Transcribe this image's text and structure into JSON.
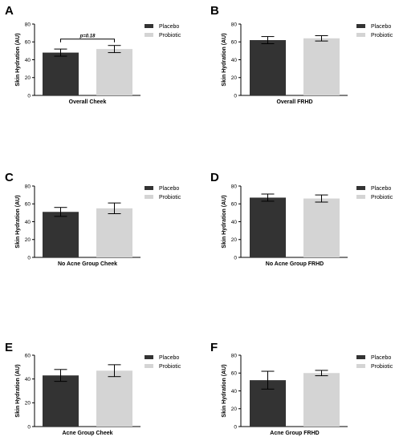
{
  "chart_data": [
    {
      "type": "bar",
      "panel": "A",
      "categories": [
        "Placebo",
        "Probiotic"
      ],
      "values": [
        48,
        52
      ],
      "errors": [
        4,
        4
      ],
      "colors": [
        "#333333",
        "#d4d4d4"
      ],
      "title": "",
      "xlabel": "Overall Cheek",
      "ylabel": "Skin Hydration (AU)",
      "ylim": [
        0,
        80
      ],
      "yticks": [
        "0",
        "20",
        "40",
        "60",
        "80"
      ],
      "legend": [
        "Placebo",
        "Probiotic"
      ],
      "legend_position": "right",
      "annotation": "p=0.18"
    },
    {
      "type": "bar",
      "panel": "B",
      "categories": [
        "Placebo",
        "Probiotic"
      ],
      "values": [
        62,
        64
      ],
      "errors": [
        4,
        3
      ],
      "colors": [
        "#333333",
        "#d4d4d4"
      ],
      "title": "",
      "xlabel": "Overall FRHD",
      "ylabel": "Skin Hydration (AU)",
      "ylim": [
        0,
        80
      ],
      "yticks": [
        "0",
        "20",
        "40",
        "60",
        "80"
      ],
      "legend": [
        "Placebo",
        "Probiotic"
      ],
      "legend_position": "right"
    },
    {
      "type": "bar",
      "panel": "C",
      "categories": [
        "Placebo",
        "Probiotic"
      ],
      "values": [
        51,
        55
      ],
      "errors": [
        5,
        6
      ],
      "colors": [
        "#333333",
        "#d4d4d4"
      ],
      "title": "",
      "xlabel": "No Acne Group Cheek",
      "ylabel": "Skin Hydration (AU)",
      "ylim": [
        0,
        80
      ],
      "yticks": [
        "0",
        "20",
        "40",
        "60",
        "80"
      ],
      "legend": [
        "Placebo",
        "Probiotic"
      ],
      "legend_position": "right"
    },
    {
      "type": "bar",
      "panel": "D",
      "categories": [
        "Placebo",
        "Probiotic"
      ],
      "values": [
        67,
        66
      ],
      "errors": [
        4,
        4
      ],
      "colors": [
        "#333333",
        "#d4d4d4"
      ],
      "title": "",
      "xlabel": "No Acne Group FRHD",
      "ylabel": "Skin Hydration (AU)",
      "ylim": [
        0,
        80
      ],
      "yticks": [
        "0",
        "20",
        "40",
        "60",
        "80"
      ],
      "legend": [
        "Placebo",
        "Probiotic"
      ],
      "legend_position": "right"
    },
    {
      "type": "bar",
      "panel": "E",
      "categories": [
        "Placebo",
        "Probiotic"
      ],
      "values": [
        43,
        47
      ],
      "errors": [
        5,
        5
      ],
      "colors": [
        "#333333",
        "#d4d4d4"
      ],
      "title": "",
      "xlabel": "Acne Group Cheek",
      "ylabel": "Skin Hydration (AU)",
      "ylim": [
        0,
        60
      ],
      "yticks": [
        "0",
        "20",
        "40",
        "60"
      ],
      "legend": [
        "Placebo",
        "Probiotic"
      ],
      "legend_position": "right"
    },
    {
      "type": "bar",
      "panel": "F",
      "categories": [
        "Placebo",
        "Probiotic"
      ],
      "values": [
        52,
        60
      ],
      "errors": [
        10,
        3
      ],
      "colors": [
        "#333333",
        "#d4d4d4"
      ],
      "title": "",
      "xlabel": "Acne Group FRHD",
      "ylabel": "Skin Hydration (AU)",
      "ylim": [
        0,
        80
      ],
      "yticks": [
        "0",
        "20",
        "40",
        "60",
        "80"
      ],
      "legend": [
        "Placebo",
        "Probiotic"
      ],
      "legend_position": "right"
    }
  ]
}
